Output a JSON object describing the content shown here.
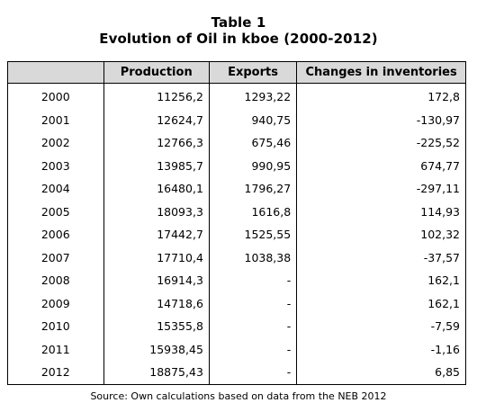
{
  "title": "Table 1",
  "subtitle": "Evolution of Oil in kboe (2000-2012)",
  "source": "Source: Own calculations based on data from the NEB 2012",
  "chart_data": {
    "type": "table",
    "title": "Table 1",
    "subtitle": "Evolution of Oil in kboe (2000-2012)",
    "columns": [
      "",
      "Production",
      "Exports",
      "Changes in inventories"
    ],
    "rows": [
      {
        "year": "2000",
        "production": "11256,2",
        "exports": "1293,22",
        "changes": "172,8"
      },
      {
        "year": "2001",
        "production": "12624,7",
        "exports": "940,75",
        "changes": "-130,97"
      },
      {
        "year": "2002",
        "production": "12766,3",
        "exports": "675,46",
        "changes": "-225,52"
      },
      {
        "year": "2003",
        "production": "13985,7",
        "exports": "990,95",
        "changes": "674,77"
      },
      {
        "year": "2004",
        "production": "16480,1",
        "exports": "1796,27",
        "changes": "-297,11"
      },
      {
        "year": "2005",
        "production": "18093,3",
        "exports": "1616,8",
        "changes": "114,93"
      },
      {
        "year": "2006",
        "production": "17442,7",
        "exports": "1525,55",
        "changes": "102,32"
      },
      {
        "year": "2007",
        "production": "17710,4",
        "exports": "1038,38",
        "changes": "-37,57"
      },
      {
        "year": "2008",
        "production": "16914,3",
        "exports": "-",
        "changes": "162,1"
      },
      {
        "year": "2009",
        "production": "14718,6",
        "exports": "-",
        "changes": "162,1"
      },
      {
        "year": "2010",
        "production": "15355,8",
        "exports": "-",
        "changes": "-7,59"
      },
      {
        "year": "2011",
        "production": "15938,45",
        "exports": "-",
        "changes": "-1,16"
      },
      {
        "year": "2012",
        "production": "18875,43",
        "exports": "-",
        "changes": "6,85"
      }
    ]
  }
}
